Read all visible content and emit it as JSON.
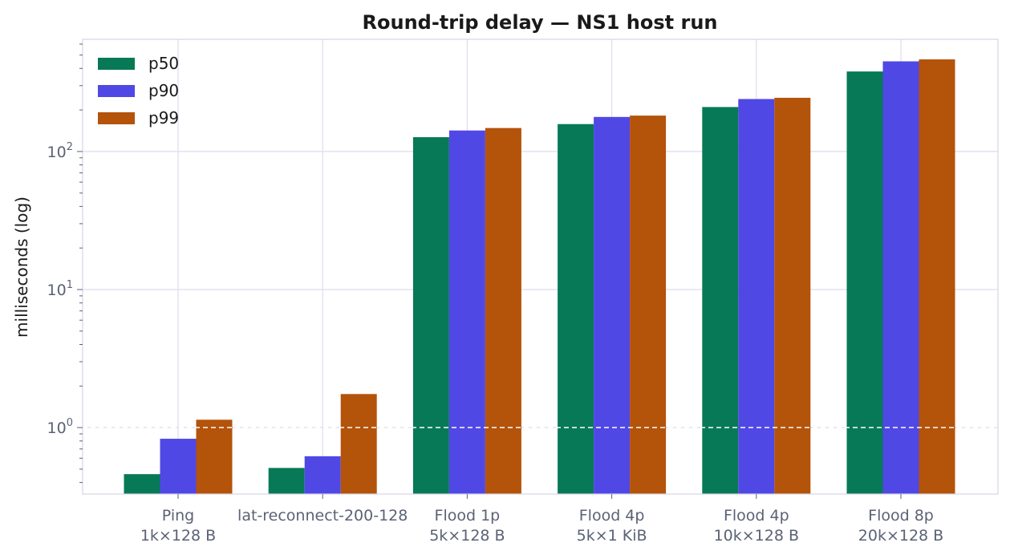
{
  "chart_data": {
    "type": "bar",
    "title": "Round-trip delay — NS1 host run",
    "xlabel": "",
    "ylabel": "milliseconds (log)",
    "yscale": "log",
    "ylim": [
      0.33,
      650
    ],
    "grid": true,
    "legend_position": "top-left",
    "reference_line": {
      "y": 1,
      "style": "dashed",
      "color": "#ffffff"
    },
    "categories": [
      [
        "Ping",
        "1k×128 B"
      ],
      [
        "lat-reconnect-200-128"
      ],
      [
        "Flood 1p",
        "5k×128 B"
      ],
      [
        "Flood 4p",
        "5k×1 KiB"
      ],
      [
        "Flood 4p",
        "10k×128 B"
      ],
      [
        "Flood 8p",
        "20k×128 B"
      ]
    ],
    "y_ticks": [
      {
        "value": 1,
        "base": "10",
        "exp": "0"
      },
      {
        "value": 10,
        "base": "10",
        "exp": "1"
      },
      {
        "value": 100,
        "base": "10",
        "exp": "2"
      }
    ],
    "series": [
      {
        "name": "p50",
        "color": "#077957",
        "values": [
          0.46,
          0.51,
          127,
          158,
          210,
          380
        ]
      },
      {
        "name": "p90",
        "color": "#5048e5",
        "values": [
          0.83,
          0.62,
          142,
          178,
          240,
          450
        ]
      },
      {
        "name": "p99",
        "color": "#b4530a",
        "values": [
          1.14,
          1.75,
          148,
          182,
          245,
          465
        ]
      }
    ]
  }
}
